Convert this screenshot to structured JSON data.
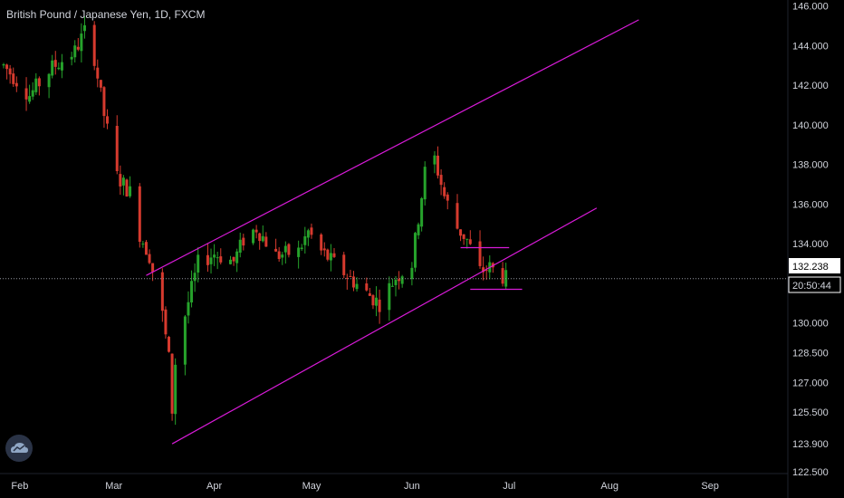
{
  "header": {
    "title": "British Pound / Japanese Yen, 1D, FXCM"
  },
  "price_badge": {
    "price": "132.238",
    "countdown": "20:50:44"
  },
  "colors": {
    "up": "#26a22b",
    "down": "#d63a2e",
    "channel": "#d81bd8",
    "axis_text": "#d1d4dc",
    "badge_bg": "#ffffff"
  },
  "chart_data": {
    "type": "candlestick",
    "symbol": "British Pound / Japanese Yen",
    "interval": "1D",
    "source": "FXCM",
    "y_ticks": [
      "146.000",
      "144.000",
      "142.000",
      "140.000",
      "138.000",
      "136.000",
      "134.000",
      "132.000",
      "130.000",
      "128.500",
      "127.000",
      "125.500",
      "123.900",
      "122.500"
    ],
    "x_ticks": [
      "Feb",
      "Mar",
      "Apr",
      "May",
      "Jun",
      "Jul",
      "Aug",
      "Sep"
    ],
    "ylim": [
      122.4,
      146.3
    ],
    "x_range": [
      "2020-01-27",
      "2020-09-25"
    ],
    "last_price": 132.238,
    "price_nodes": [
      [
        "2020-01-27",
        143.0
      ],
      [
        "2020-02-04",
        141.5
      ],
      [
        "2020-02-11",
        142.9
      ],
      [
        "2020-02-18",
        143.7
      ],
      [
        "2020-02-21",
        144.7
      ],
      [
        "2020-02-24",
        143.4
      ],
      [
        "2020-02-27",
        140.5
      ],
      [
        "2020-03-02",
        137.4
      ],
      [
        "2020-03-06",
        136.6
      ],
      [
        "2020-03-09",
        134.5
      ],
      [
        "2020-03-12",
        133.4
      ],
      [
        "2020-03-16",
        130.4
      ],
      [
        "2020-03-18",
        128.2
      ],
      [
        "2020-03-19",
        125.6
      ],
      [
        "2020-03-20",
        128.0
      ],
      [
        "2020-03-23",
        130.4
      ],
      [
        "2020-03-27",
        133.0
      ],
      [
        "2020-04-01",
        133.5
      ],
      [
        "2020-04-07",
        133.1
      ],
      [
        "2020-04-10",
        134.2
      ],
      [
        "2020-04-14",
        134.8
      ],
      [
        "2020-04-20",
        133.4
      ],
      [
        "2020-04-27",
        133.6
      ],
      [
        "2020-04-30",
        134.6
      ],
      [
        "2020-05-04",
        133.6
      ],
      [
        "2020-05-12",
        132.4
      ],
      [
        "2020-05-18",
        131.5
      ],
      [
        "2020-05-22",
        131.0
      ],
      [
        "2020-05-27",
        132.3
      ],
      [
        "2020-06-01",
        133.0
      ],
      [
        "2020-06-05",
        137.6
      ],
      [
        "2020-06-08",
        138.3
      ],
      [
        "2020-06-11",
        136.4
      ],
      [
        "2020-06-15",
        134.8
      ],
      [
        "2020-06-18",
        134.2
      ],
      [
        "2020-06-22",
        132.6
      ],
      [
        "2020-06-25",
        132.8
      ],
      [
        "2020-06-30",
        132.24
      ]
    ],
    "channel_lines": [
      {
        "from": [
          "2020-03-11",
          132.4
        ],
        "to": [
          "2020-08-10",
          145.3
        ]
      },
      {
        "from": [
          "2020-03-19",
          123.9
        ],
        "to": [
          "2020-07-28",
          135.8
        ]
      },
      {
        "from": [
          "2020-06-16",
          133.8
        ],
        "to": [
          "2020-07-01",
          133.8
        ]
      },
      {
        "from": [
          "2020-06-19",
          131.7
        ],
        "to": [
          "2020-07-05",
          131.7
        ]
      }
    ],
    "grid": false
  }
}
